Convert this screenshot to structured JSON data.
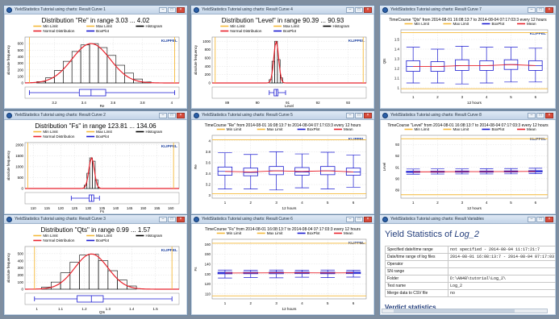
{
  "colors": {
    "min_limit": "#f4b93a",
    "max_limit": "#f4b93a",
    "histogram": "#000000",
    "normal": "#e8232d",
    "boxplot": "#1a1ad0",
    "mean": "#e8232d",
    "brand": "#1a3fa0"
  },
  "legend_labels": {
    "min": "Min Limit",
    "max": "Max Limit",
    "hist": "Histogram",
    "normal": "Normal Distribution",
    "box": "BoxPlot",
    "mean": "Mean"
  },
  "brand_label": "KLIPPEL",
  "windows": [
    {
      "title": "YieldStatistics Tutorial using charts: Result Curve 1"
    },
    {
      "title": "YieldStatistics Tutorial using charts: Result Curve 4"
    },
    {
      "title": "YieldStatistics Tutorial using charts: Result Curve 7"
    },
    {
      "title": "YieldStatistics Tutorial using charts: Result Curve 2"
    },
    {
      "title": "YieldStatistics Tutorial using charts: Result Curve 5"
    },
    {
      "title": "YieldStatistics Tutorial using charts: Result Curve 8"
    },
    {
      "title": "YieldStatistics Tutorial using charts: Result Curve 3"
    },
    {
      "title": "YieldStatistics Tutorial using charts: Result Curve 6"
    },
    {
      "title": "YieldStatistics Tutorial using charts: Result Variables"
    }
  ],
  "variables": {
    "title_prefix": "Yield Statistics of ",
    "title_log": "Log_2",
    "rows": [
      {
        "key": "Specified date/time range",
        "value": "not specified - 2014-08-04 11:17:21:7"
      },
      {
        "key": "Date/time range of log files",
        "value": "2014-08-01 16:08:13:7 - 2014-08-04 07:17:03"
      },
      {
        "key": "Operator",
        "value": ""
      },
      {
        "key": "SN range",
        "value": ""
      },
      {
        "key": "Folder",
        "value": "D:\\AN48\\tutorial\\Log_2\\"
      },
      {
        "key": "Test name",
        "value": "Log_2"
      },
      {
        "key": "Merge data to CSV file",
        "value": "no"
      }
    ],
    "verdict": "Verdict statistics"
  },
  "chart_data": [
    {
      "type": "bar",
      "title": "Distribution \"Re\" in range  3.03 ... 4.02",
      "xlabel": "Re",
      "ylabel": "absolute frequency",
      "xlim": [
        3.0,
        4.05
      ],
      "ylim": [
        0,
        700
      ],
      "xticks": [
        3.2,
        3.4,
        3.6,
        3.8,
        4.0
      ],
      "yticks": [
        0,
        100,
        200,
        300,
        400,
        500,
        600
      ],
      "limits": [
        3.03,
        4.02
      ],
      "bins": [
        {
          "x0": 3.08,
          "x1": 3.14,
          "count": 20
        },
        {
          "x0": 3.14,
          "x1": 3.2,
          "count": 80
        },
        {
          "x0": 3.2,
          "x1": 3.26,
          "count": 190
        },
        {
          "x0": 3.26,
          "x1": 3.32,
          "count": 330
        },
        {
          "x0": 3.32,
          "x1": 3.38,
          "count": 480
        },
        {
          "x0": 3.38,
          "x1": 3.44,
          "count": 580
        },
        {
          "x0": 3.44,
          "x1": 3.5,
          "count": 600
        },
        {
          "x0": 3.5,
          "x1": 3.56,
          "count": 540
        },
        {
          "x0": 3.56,
          "x1": 3.62,
          "count": 420
        },
        {
          "x0": 3.62,
          "x1": 3.68,
          "count": 270
        },
        {
          "x0": 3.68,
          "x1": 3.74,
          "count": 150
        },
        {
          "x0": 3.74,
          "x1": 3.8,
          "count": 60
        },
        {
          "x0": 3.8,
          "x1": 3.86,
          "count": 15
        }
      ],
      "normal": {
        "mean": 3.45,
        "sd": 0.13,
        "peak": 600
      },
      "box": {
        "min": 3.03,
        "q1": 3.37,
        "median": 3.45,
        "q3": 3.55,
        "max": 4.02
      }
    },
    {
      "type": "bar",
      "title": "Distribution \"Level\" in range  90.39 ... 90.93",
      "xlabel": "Level",
      "ylabel": "absolute frequency",
      "xlim": [
        88.5,
        93.6
      ],
      "ylim": [
        0,
        1100
      ],
      "xticks": [
        89,
        90,
        91,
        92,
        93
      ],
      "yticks": [
        0,
        200,
        400,
        600,
        800,
        1000
      ],
      "limits": [
        88.6,
        93.5
      ],
      "bins": [
        {
          "x0": 90.39,
          "x1": 90.48,
          "count": 80
        },
        {
          "x0": 90.48,
          "x1": 90.57,
          "count": 520
        },
        {
          "x0": 90.57,
          "x1": 90.66,
          "count": 1000
        },
        {
          "x0": 90.66,
          "x1": 90.75,
          "count": 560
        },
        {
          "x0": 90.75,
          "x1": 90.84,
          "count": 120
        }
      ],
      "normal": {
        "mean": 90.62,
        "sd": 0.08,
        "peak": 1000
      },
      "box": {
        "min": 90.39,
        "q1": 90.55,
        "median": 90.62,
        "q3": 90.68,
        "max": 90.93
      }
    },
    {
      "type": "boxplot",
      "title": "TimeCourse \"Qts\" from 2014-08-01 16:08:13:7 to 2014-08-04 07:17:03:3 every 12 hours",
      "xlabel": "12 hours",
      "ylabel": "Qts",
      "xlim": [
        0.5,
        6.5
      ],
      "ylim": [
        0.95,
        1.6
      ],
      "xticks": [
        1,
        2,
        3,
        4,
        5,
        6
      ],
      "yticks": [
        1.0,
        1.1,
        1.2,
        1.3,
        1.4,
        1.5
      ],
      "limits": [
        0.99,
        1.57
      ],
      "boxes": [
        {
          "x": 1,
          "min": 1.05,
          "q1": 1.17,
          "median": 1.22,
          "q3": 1.28,
          "max": 1.42
        },
        {
          "x": 2,
          "min": 1.05,
          "q1": 1.17,
          "median": 1.22,
          "q3": 1.27,
          "max": 1.4
        },
        {
          "x": 3,
          "min": 1.04,
          "q1": 1.18,
          "median": 1.23,
          "q3": 1.29,
          "max": 1.43
        },
        {
          "x": 4,
          "min": 1.05,
          "q1": 1.18,
          "median": 1.23,
          "q3": 1.28,
          "max": 1.42
        },
        {
          "x": 5,
          "min": 1.06,
          "q1": 1.19,
          "median": 1.24,
          "q3": 1.29,
          "max": 1.42
        },
        {
          "x": 6,
          "min": 1.06,
          "q1": 1.18,
          "median": 1.23,
          "q3": 1.28,
          "max": 1.41
        }
      ],
      "mean": [
        1.22,
        1.22,
        1.23,
        1.23,
        1.24,
        1.23
      ]
    },
    {
      "type": "bar",
      "title": "Distribution \"Fs\" in range  123.81 ... 134.06",
      "xlabel": "Fs",
      "ylabel": "absolute frequency",
      "xlim": [
        107,
        163
      ],
      "ylim": [
        0,
        2100
      ],
      "xticks": [
        110,
        115,
        120,
        125,
        130,
        135,
        140,
        145,
        150,
        155,
        160
      ],
      "yticks": [
        0,
        500,
        1000,
        1500,
        2000
      ],
      "limits": [
        108,
        161
      ],
      "bins": [
        {
          "x0": 128.5,
          "x1": 129.5,
          "count": 150
        },
        {
          "x0": 129.5,
          "x1": 130.5,
          "count": 700
        },
        {
          "x0": 130.5,
          "x1": 131.5,
          "count": 1400
        },
        {
          "x0": 131.5,
          "x1": 132.5,
          "count": 1250
        },
        {
          "x0": 132.5,
          "x1": 133.5,
          "count": 400
        },
        {
          "x0": 133.5,
          "x1": 134.0,
          "count": 60
        }
      ],
      "normal": {
        "mean": 131.2,
        "sd": 1.0,
        "peak": 1400
      },
      "box": {
        "min": 123.81,
        "q1": 130.3,
        "median": 131.2,
        "q3": 132.0,
        "max": 134.06
      }
    },
    {
      "type": "boxplot",
      "title": "TimeCourse \"Re\" from 2014-08-01 16:08:13:7 to 2014-08-04 07:17:03:3 every 12 hours",
      "xlabel": "12 hours",
      "ylabel": "Re",
      "xlim": [
        0.5,
        6.5
      ],
      "ylim": [
        2.95,
        4.1
      ],
      "xticks": [
        1,
        2,
        3,
        4,
        5,
        6
      ],
      "yticks": [
        3.0,
        3.2,
        3.4,
        3.6,
        3.8,
        4.0
      ],
      "limits": [
        3.03,
        4.02
      ],
      "boxes": [
        {
          "x": 1,
          "min": 3.12,
          "q1": 3.37,
          "median": 3.44,
          "q3": 3.52,
          "max": 3.78
        },
        {
          "x": 2,
          "min": 3.12,
          "q1": 3.36,
          "median": 3.42,
          "q3": 3.5,
          "max": 3.75
        },
        {
          "x": 3,
          "min": 3.1,
          "q1": 3.38,
          "median": 3.45,
          "q3": 3.53,
          "max": 3.8
        },
        {
          "x": 4,
          "min": 3.14,
          "q1": 3.37,
          "median": 3.43,
          "q3": 3.51,
          "max": 3.76
        },
        {
          "x": 5,
          "min": 3.12,
          "q1": 3.38,
          "median": 3.45,
          "q3": 3.53,
          "max": 3.79
        },
        {
          "x": 6,
          "min": 3.15,
          "q1": 3.37,
          "median": 3.43,
          "q3": 3.5,
          "max": 3.74
        }
      ],
      "mean": [
        3.44,
        3.43,
        3.45,
        3.44,
        3.45,
        3.43
      ]
    },
    {
      "type": "boxplot",
      "title": "TimeCourse \"Level\" from 2014-08-01 16:08:13:7 to 2014-08-04 07:17:03:3 every 12 hours",
      "xlabel": "12 hours",
      "ylabel": "Level",
      "xlim": [
        0.5,
        6.5
      ],
      "ylim": [
        88.3,
        93.8
      ],
      "xticks": [
        1,
        2,
        3,
        4,
        5,
        6
      ],
      "yticks": [
        89,
        90,
        91,
        92,
        93
      ],
      "limits": [
        88.6,
        93.5
      ],
      "boxes": [
        {
          "x": 1,
          "min": 90.4,
          "q1": 90.55,
          "median": 90.6,
          "q3": 90.66,
          "max": 90.85
        },
        {
          "x": 2,
          "min": 90.41,
          "q1": 90.56,
          "median": 90.61,
          "q3": 90.67,
          "max": 90.86
        },
        {
          "x": 3,
          "min": 90.42,
          "q1": 90.57,
          "median": 90.62,
          "q3": 90.68,
          "max": 90.87
        },
        {
          "x": 4,
          "min": 90.42,
          "q1": 90.57,
          "median": 90.62,
          "q3": 90.68,
          "max": 90.88
        },
        {
          "x": 5,
          "min": 90.43,
          "q1": 90.58,
          "median": 90.63,
          "q3": 90.69,
          "max": 90.89
        },
        {
          "x": 6,
          "min": 90.44,
          "q1": 90.59,
          "median": 90.65,
          "q3": 90.71,
          "max": 90.92
        }
      ],
      "mean": [
        90.6,
        90.61,
        90.62,
        90.62,
        90.63,
        90.65
      ]
    },
    {
      "type": "bar",
      "title": "Distribution \"Qts\" in range  0.99 ... 1.57",
      "xlabel": "Qts",
      "ylabel": "absolute frequency",
      "xlim": [
        0.95,
        1.6
      ],
      "ylim": [
        0,
        600
      ],
      "xticks": [
        1.0,
        1.1,
        1.2,
        1.3,
        1.4,
        1.5
      ],
      "yticks": [
        0,
        100,
        200,
        300,
        400,
        500
      ],
      "limits": [
        0.99,
        1.57
      ],
      "bins": [
        {
          "x0": 1.02,
          "x1": 1.06,
          "count": 30
        },
        {
          "x0": 1.06,
          "x1": 1.1,
          "count": 100
        },
        {
          "x0": 1.1,
          "x1": 1.14,
          "count": 230
        },
        {
          "x0": 1.14,
          "x1": 1.18,
          "count": 380
        },
        {
          "x0": 1.18,
          "x1": 1.22,
          "count": 480
        },
        {
          "x0": 1.22,
          "x1": 1.26,
          "count": 490
        },
        {
          "x0": 1.26,
          "x1": 1.3,
          "count": 400
        },
        {
          "x0": 1.3,
          "x1": 1.34,
          "count": 260
        },
        {
          "x0": 1.34,
          "x1": 1.38,
          "count": 130
        },
        {
          "x0": 1.38,
          "x1": 1.42,
          "count": 45
        }
      ],
      "normal": {
        "mean": 1.23,
        "sd": 0.07,
        "peak": 495
      },
      "box": {
        "min": 0.99,
        "q1": 1.17,
        "median": 1.23,
        "q3": 1.28,
        "max": 1.57
      }
    },
    {
      "type": "boxplot",
      "title": "TimeCourse \"Fs\" from 2014-08-01 16:08:13:7 to 2014-08-04 07:17:03:3 every 12 hours",
      "xlabel": "12 hours",
      "ylabel": "Fs",
      "xlim": [
        0.5,
        6.5
      ],
      "ylim": [
        105,
        165
      ],
      "xticks": [
        1,
        2,
        3,
        4,
        5,
        6
      ],
      "yticks": [
        110,
        120,
        130,
        140,
        150,
        160
      ],
      "limits": [
        108,
        161
      ],
      "boxes": [
        {
          "x": 1,
          "min": 126.0,
          "q1": 130.2,
          "median": 131.0,
          "q3": 131.8,
          "max": 134.0
        },
        {
          "x": 2,
          "min": 126.5,
          "q1": 130.3,
          "median": 131.1,
          "q3": 131.9,
          "max": 133.8
        },
        {
          "x": 3,
          "min": 126.2,
          "q1": 130.3,
          "median": 131.2,
          "q3": 132.0,
          "max": 134.0
        },
        {
          "x": 4,
          "min": 126.8,
          "q1": 130.4,
          "median": 131.2,
          "q3": 132.0,
          "max": 133.9
        },
        {
          "x": 5,
          "min": 126.4,
          "q1": 130.3,
          "median": 131.1,
          "q3": 131.9,
          "max": 134.0
        },
        {
          "x": 6,
          "min": 126.9,
          "q1": 130.4,
          "median": 131.2,
          "q3": 132.0,
          "max": 133.8
        }
      ],
      "mean": [
        131.0,
        131.1,
        131.2,
        131.2,
        131.1,
        131.2
      ]
    }
  ]
}
